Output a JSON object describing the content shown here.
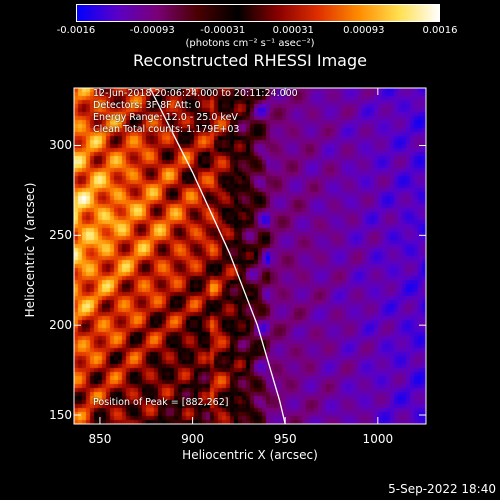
{
  "chart_data": {
    "type": "heatmap",
    "title": "Reconstructed RHESSI Image",
    "xlabel": "Heliocentric X (arcsec)",
    "ylabel": "Heliocentric Y (arcsec)",
    "xlim": [
      836,
      1026
    ],
    "ylim": [
      145,
      332
    ],
    "x_ticks": [
      "850",
      "900",
      "950",
      "1000"
    ],
    "y_ticks": [
      "150",
      "200",
      "250",
      "300"
    ],
    "colorbar": {
      "range": [
        -0.0016,
        0.0016
      ],
      "tick_labels": [
        "-0.0016",
        "-0.00093",
        "-0.00031",
        "0.00031",
        "0.00093",
        "0.0016"
      ],
      "unit_label": "(photons cm⁻² s⁻¹ asec⁻²)",
      "colormap": [
        "#0000ff",
        "#5a00c8",
        "#7a0078",
        "#4a0000",
        "#000000",
        "#8a0000",
        "#e03000",
        "#ff8c00",
        "#ffe050",
        "#ffffff"
      ]
    },
    "annotations": [
      "12-Jun-2018 20:06:24.000 to 20:11:24.000",
      "Detectors: 3F 8F  Att: 0",
      "Energy Range: 12.0 - 25.0 keV",
      "Clean     Total counts: 1.179E+03",
      "Position of Peak = [882,262]"
    ],
    "peak": {
      "x": 882,
      "y": 262
    },
    "limb_curve": [
      [
        877,
        332
      ],
      [
        900,
        285
      ],
      [
        920,
        240
      ],
      [
        935,
        200
      ],
      [
        947,
        158
      ],
      [
        950,
        145
      ]
    ]
  },
  "footer_date": "5-Sep-2022 18:40"
}
